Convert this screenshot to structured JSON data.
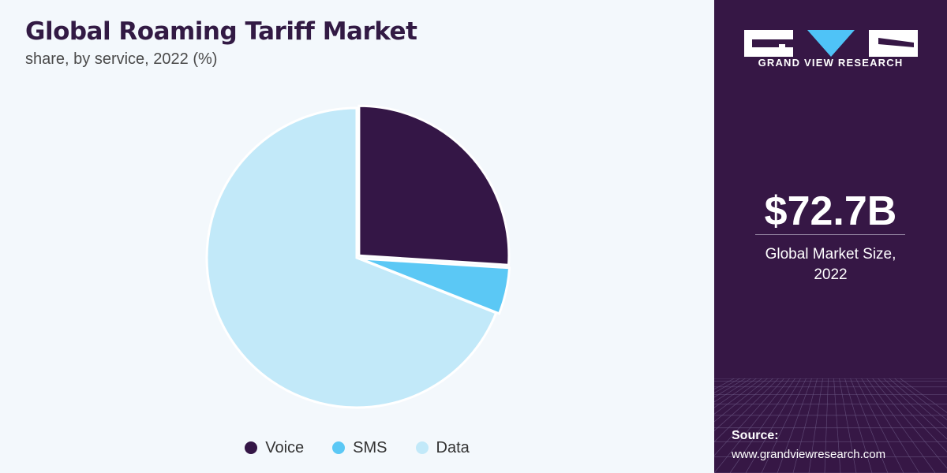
{
  "chart_data": {
    "type": "pie",
    "title": "Global Roaming Tariff Market",
    "subtitle": "share, by service, 2022 (%)",
    "categories": [
      "Voice",
      "SMS",
      "Data"
    ],
    "values": [
      26,
      5,
      69
    ],
    "colors": [
      "#341646",
      "#5bc8f5",
      "#c2e9f9"
    ],
    "start_angle_deg": 0,
    "direction": "clockwise",
    "exploded_slices": [
      "Voice",
      "SMS"
    ],
    "legend": {
      "position": "bottom"
    }
  },
  "sidebar": {
    "brand": "GRAND VIEW RESEARCH",
    "market_size": "$72.7B",
    "market_label_line1": "Global Market Size,",
    "market_label_line2": "2022",
    "source_label": "Source:",
    "source_url": "www.grandviewresearch.com"
  }
}
